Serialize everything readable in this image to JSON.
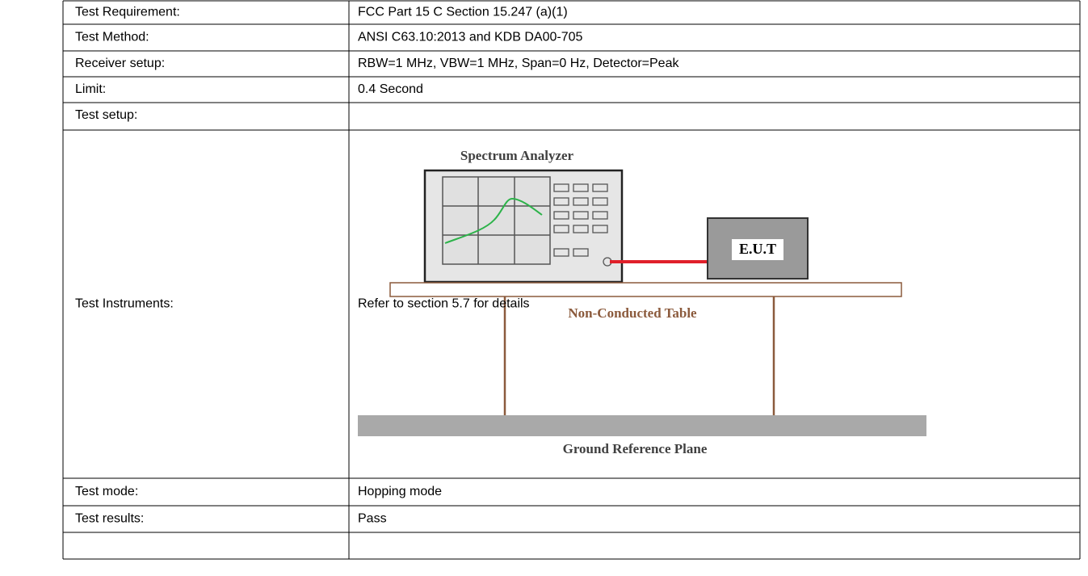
{
  "table": {
    "rows": [
      [
        "Test Requirement:",
        "FCC Part 15 C Section 15.247 (a)(1)"
      ],
      [
        "Test Method:",
        "ANSI C63.10:2013 and KDB DA00-705"
      ],
      [
        "Receiver setup:",
        "RBW=1 MHz, VBW=1 MHz, Span=0 Hz, Detector=Peak"
      ],
      [
        "Limit:",
        "0.4 Second"
      ],
      [
        "Test setup:"
      ],
      [
        "Test Instruments:",
        "Refer to section 5.7 for details"
      ],
      [
        "Test mode:",
        "Hopping mode"
      ],
      [
        "Test results:",
        "Pass"
      ]
    ]
  },
  "diagram": {
    "analyzer_label": "Spectrum Analyzer",
    "eut_label": "E.U.T",
    "table_label": "Non-Conducted Table",
    "ground_label": "Ground Reference Plane"
  }
}
